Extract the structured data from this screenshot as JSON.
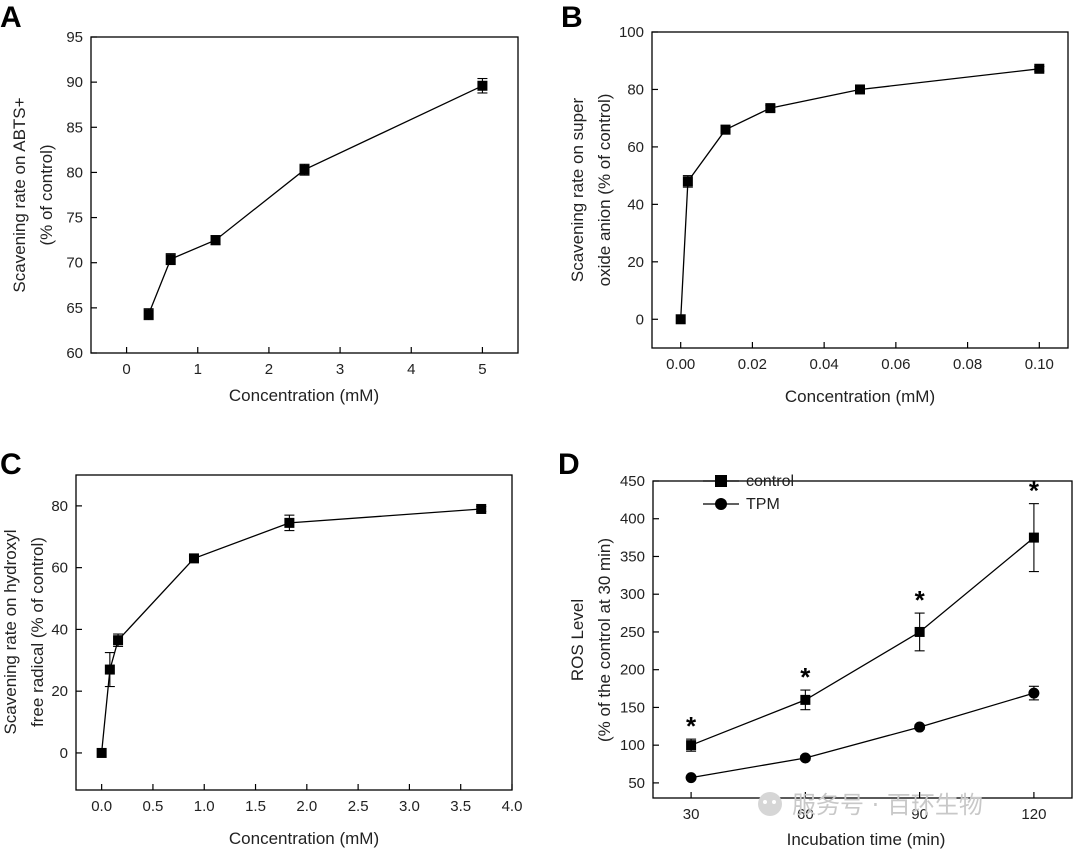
{
  "chart_data": [
    {
      "type": "line",
      "panel_label": "A",
      "xlabel": "Concentration (mM)",
      "ylabel_lines": [
        "Scavening rate on ABTS+",
        "(% of control)"
      ],
      "xlim": [
        -0.5,
        5.5
      ],
      "ylim": [
        60,
        95
      ],
      "xticks": [
        0,
        1,
        2,
        3,
        4,
        5
      ],
      "yticks": [
        60,
        65,
        70,
        75,
        80,
        85,
        90,
        95
      ],
      "x_tick_labels": [
        "0",
        "1",
        "2",
        "3",
        "4",
        "5"
      ],
      "y_tick_labels": [
        "60",
        "65",
        "70",
        "75",
        "80",
        "85",
        "90",
        "95"
      ],
      "series": [
        {
          "name": "ABTS+",
          "marker": "square",
          "x": [
            0.31,
            0.62,
            1.25,
            2.5,
            5.0
          ],
          "y": [
            64.3,
            70.4,
            72.5,
            80.3,
            89.6
          ],
          "err": [
            0.6,
            0.6,
            0.5,
            0.6,
            0.8
          ]
        }
      ]
    },
    {
      "type": "line",
      "panel_label": "B",
      "xlabel": "Concentration (mM)",
      "ylabel_lines": [
        "Scavening rate on super",
        "oxide anion (% of control)"
      ],
      "xlim": [
        -0.008,
        0.108
      ],
      "ylim": [
        -10,
        100
      ],
      "xticks": [
        0.0,
        0.02,
        0.04,
        0.06,
        0.08,
        0.1
      ],
      "yticks": [
        0,
        20,
        40,
        60,
        80,
        100
      ],
      "x_tick_labels": [
        "0.00",
        "0.02",
        "0.04",
        "0.06",
        "0.08",
        "0.10"
      ],
      "y_tick_labels": [
        "0",
        "20",
        "40",
        "60",
        "80",
        "100"
      ],
      "series": [
        {
          "name": "superoxide",
          "marker": "square",
          "x": [
            0.0,
            0.002,
            0.0125,
            0.025,
            0.05,
            0.1
          ],
          "y": [
            0,
            48,
            66,
            73.5,
            80,
            87.2
          ],
          "err": [
            0,
            2,
            1.5,
            1,
            1,
            0.8
          ]
        }
      ]
    },
    {
      "type": "line",
      "panel_label": "C",
      "xlabel": "Concentration (mM)",
      "ylabel_lines": [
        "Scavening rate on hydroxyl",
        "free radical (% of control)"
      ],
      "xlim": [
        -0.25,
        4.0
      ],
      "ylim": [
        -12,
        90
      ],
      "xticks": [
        0.0,
        0.5,
        1.0,
        1.5,
        2.0,
        2.5,
        3.0,
        3.5,
        4.0
      ],
      "yticks": [
        0,
        20,
        40,
        60,
        80
      ],
      "x_tick_labels": [
        "0.0",
        "0.5",
        "1.0",
        "1.5",
        "2.0",
        "2.5",
        "3.0",
        "3.5",
        "4.0"
      ],
      "y_tick_labels": [
        "0",
        "20",
        "40",
        "60",
        "80"
      ],
      "series": [
        {
          "name": "hydroxyl",
          "marker": "square",
          "x": [
            0.0,
            0.08,
            0.16,
            0.9,
            1.83,
            3.7
          ],
          "y": [
            0,
            27,
            36.5,
            63,
            74.5,
            79
          ],
          "err": [
            0,
            5.5,
            2,
            0.8,
            2.5,
            0.8
          ]
        }
      ]
    },
    {
      "type": "line",
      "panel_label": "D",
      "xlabel": "Incubation time (min)",
      "ylabel_lines": [
        "ROS Level",
        "(% of the control at 30 min)"
      ],
      "xlim": [
        20,
        130
      ],
      "ylim": [
        30,
        450
      ],
      "xticks": [
        30,
        60,
        90,
        120
      ],
      "yticks": [
        50,
        100,
        150,
        200,
        250,
        300,
        350,
        400,
        450
      ],
      "x_tick_labels": [
        "30",
        "60",
        "90",
        "120"
      ],
      "y_tick_labels": [
        "50",
        "100",
        "150",
        "200",
        "250",
        "300",
        "350",
        "400",
        "450"
      ],
      "significance_mark": "*",
      "significance_x": [
        30,
        60,
        90,
        120
      ],
      "series": [
        {
          "name": "control",
          "marker": "square",
          "x": [
            30,
            60,
            90,
            120
          ],
          "y": [
            100,
            160,
            250,
            375
          ],
          "err": [
            8,
            13,
            25,
            45
          ]
        },
        {
          "name": "TPM",
          "marker": "circle",
          "x": [
            30,
            60,
            90,
            120
          ],
          "y": [
            57,
            83,
            124,
            169
          ],
          "err": [
            2,
            3,
            3,
            9
          ]
        }
      ]
    }
  ],
  "watermark": "服务号 · 百环生物"
}
